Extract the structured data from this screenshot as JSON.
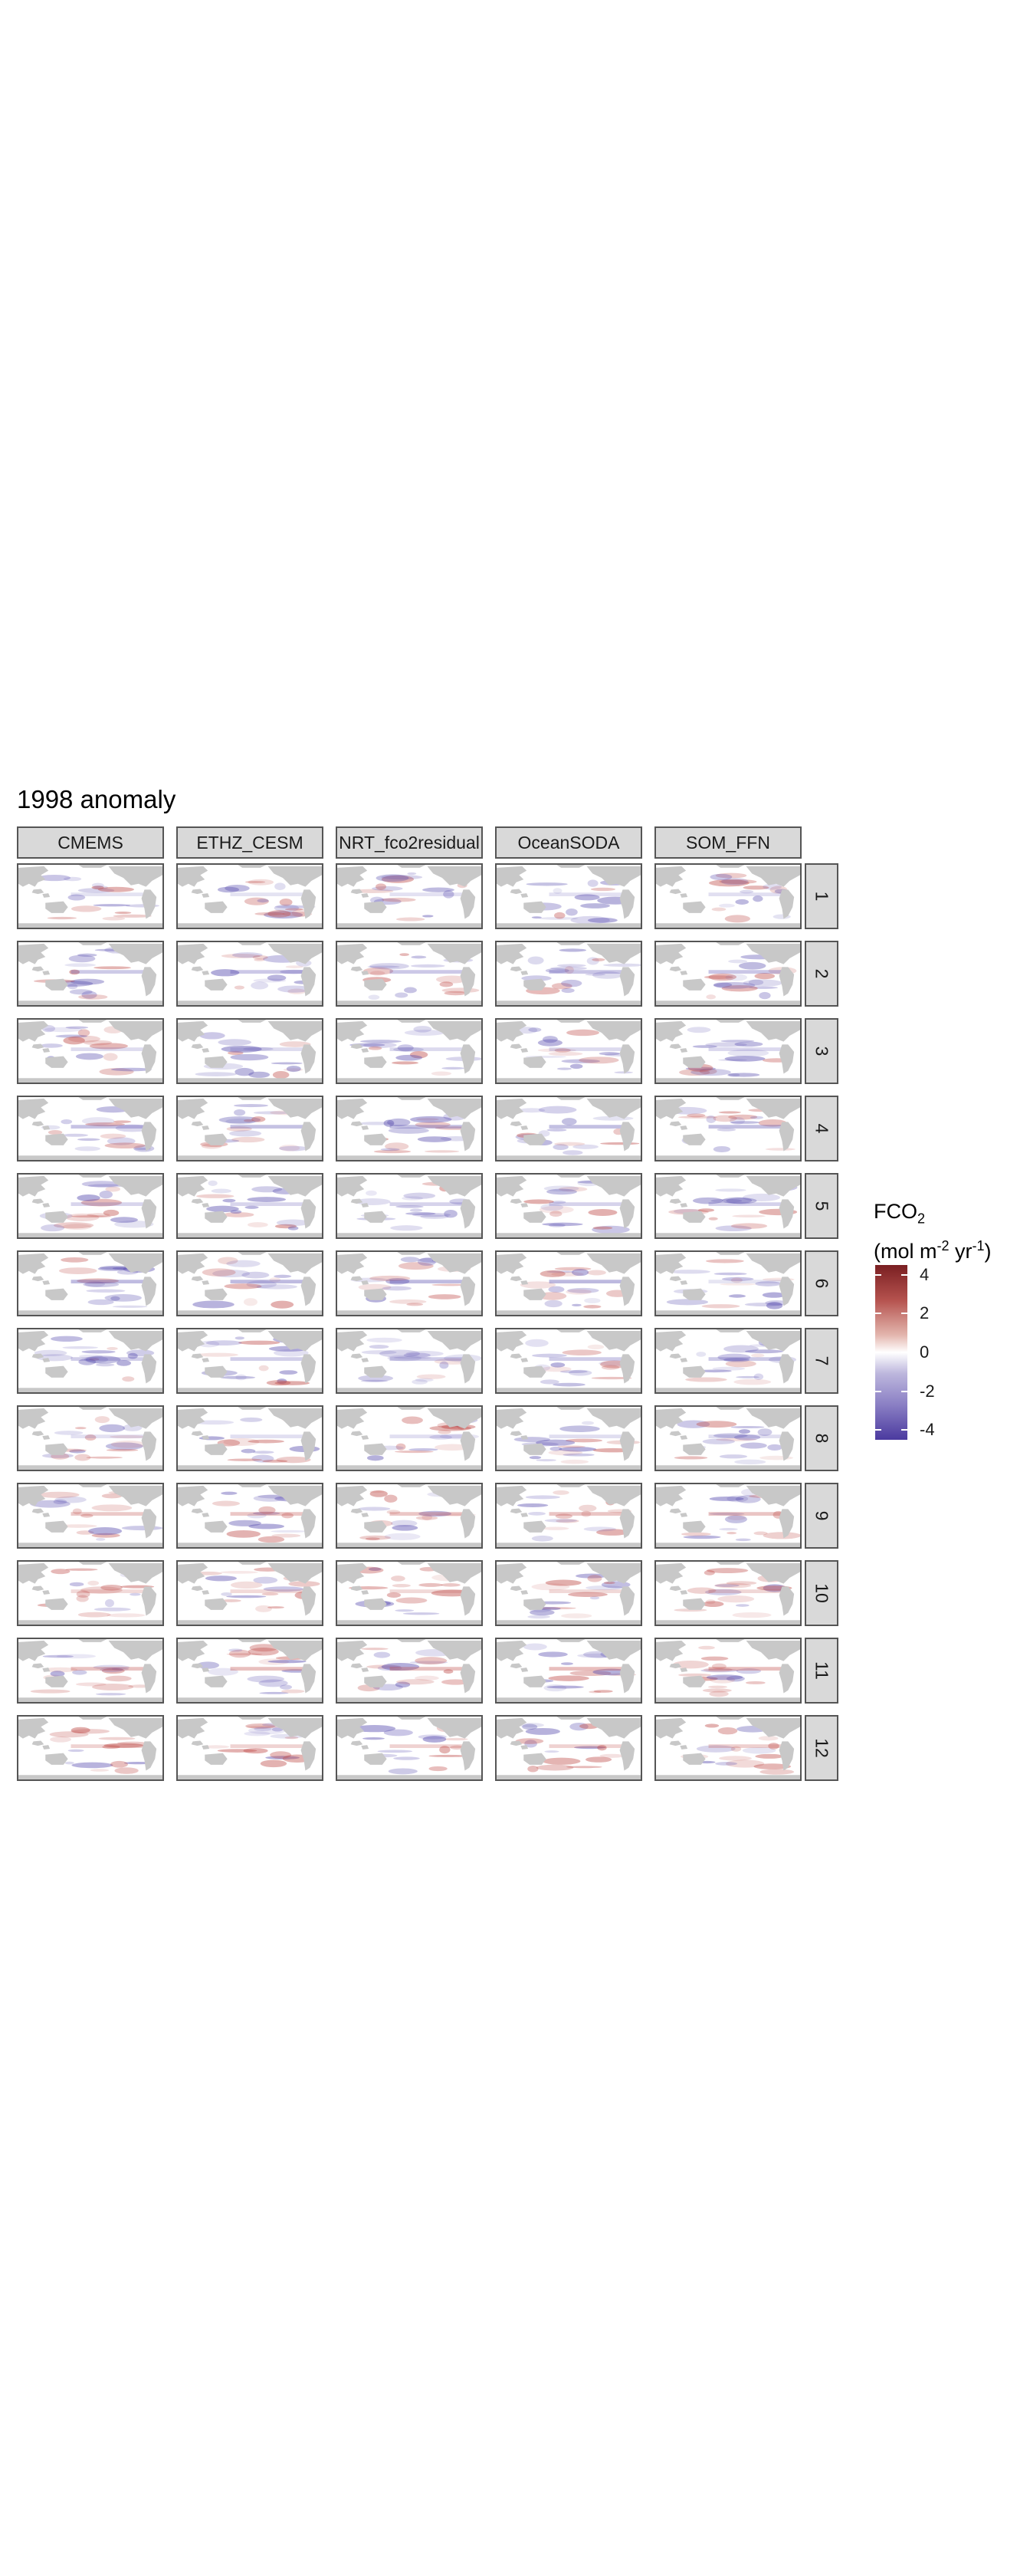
{
  "chart_data": {
    "type": "heatmap",
    "title": "1998 anomaly",
    "facet_columns": [
      "CMEMS",
      "ETHZ_CESM",
      "NRT_fco2residual",
      "OceanSODA",
      "SOM_FFN"
    ],
    "facet_rows": [
      "1",
      "2",
      "3",
      "4",
      "5",
      "6",
      "7",
      "8",
      "9",
      "10",
      "11",
      "12"
    ],
    "colorbar": {
      "title_main": "FCO",
      "title_sub": "2",
      "unit_prefix": "(mol m",
      "unit_exp1": "-2",
      "unit_mid": " yr",
      "unit_exp2": "-1",
      "unit_suffix": ")",
      "ticks": [
        {
          "value": 4,
          "label": "4"
        },
        {
          "value": 2,
          "label": "2"
        },
        {
          "value": 0,
          "label": "0"
        },
        {
          "value": -2,
          "label": "-2"
        },
        {
          "value": -4,
          "label": "-4"
        }
      ],
      "range": [
        -4.5,
        4.5
      ],
      "colors": {
        "high": "#7a1f22",
        "mid": "#ffffff",
        "low": "#4b3a9f"
      }
    },
    "land_color": "#c8c8c8",
    "ocean_color": "#ffffff",
    "positive_color": "#c0504d",
    "negative_color": "#5a4fb0"
  }
}
